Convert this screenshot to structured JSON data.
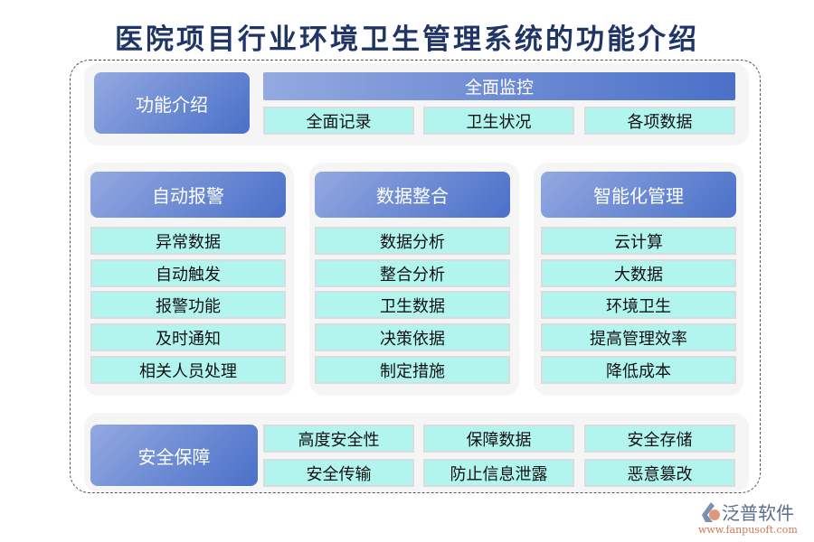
{
  "title": "医院项目行业环境卫生管理系统的功能介绍",
  "intro": {
    "label": "功能介绍",
    "bar": "全面监控",
    "items": [
      "全面记录",
      "卫生状况",
      "各项数据"
    ]
  },
  "columns": [
    {
      "label": "自动报警",
      "items": [
        "异常数据",
        "自动触发",
        "报警功能",
        "及时通知",
        "相关人员处理"
      ]
    },
    {
      "label": "数据整合",
      "items": [
        "数据分析",
        "整合分析",
        "卫生数据",
        "决策依据",
        "制定措施"
      ]
    },
    {
      "label": "智能化管理",
      "items": [
        "云计算",
        "大数据",
        "环境卫生",
        "提高管理效率",
        "降低成本"
      ]
    }
  ],
  "security": {
    "label": "安全保障",
    "items": [
      "高度安全性",
      "保障数据",
      "安全存储",
      "安全传输",
      "防止信息泄露",
      "恶意篡改"
    ]
  },
  "logo": {
    "name": "泛普软件",
    "url": "www.fanpusoft.com"
  },
  "colors": {
    "header_start": "#93a9e0",
    "header_end": "#4a70c8",
    "cell": "#b2f5ef",
    "title": "#1f3566"
  }
}
